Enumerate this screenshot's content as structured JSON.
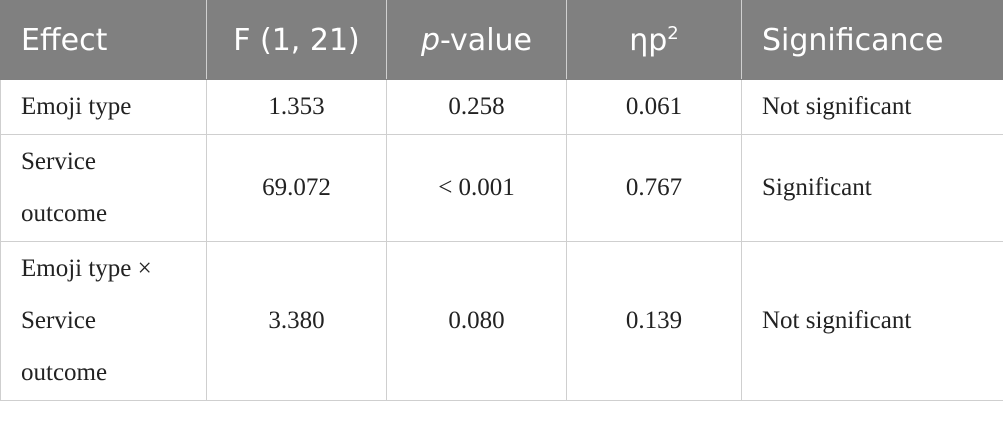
{
  "table": {
    "header": [
      "Effect",
      "F (1, 21)",
      {
        "italic": "p",
        "text": "-value"
      },
      {
        "text": "ηp",
        "sup": "2"
      },
      "Significance"
    ],
    "rows": [
      [
        "Emoji type",
        "1.353",
        "0.258",
        "0.061",
        "Not significant"
      ],
      [
        "Service outcome",
        "69.072",
        "< 0.001",
        "0.767",
        "Significant"
      ],
      [
        "Emoji type × Service outcome",
        "3.380",
        "0.080",
        "0.139",
        "Not significant"
      ]
    ]
  }
}
